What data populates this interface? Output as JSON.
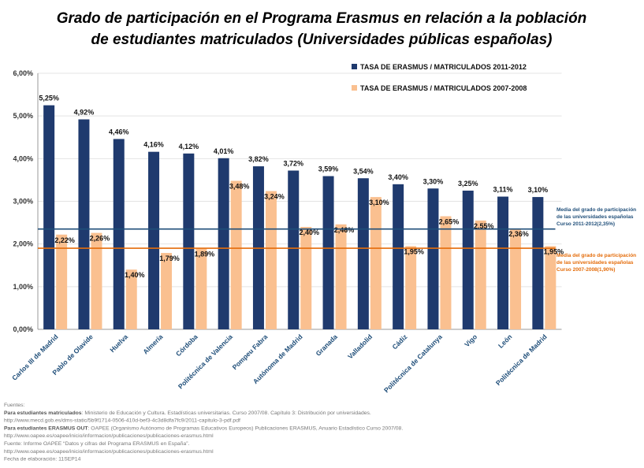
{
  "chart_data": {
    "type": "bar",
    "title": [
      "Grado de participación en el Programa Erasmus en relación a la población",
      "de estudiantes matriculados (Universidades públicas españolas)"
    ],
    "categories": [
      "Carlos III de Madrid",
      "Pablo de Olavide",
      "Huelva",
      "Almería",
      "Córdoba",
      "Politécnica de Valencia",
      "Pompeu Fabra",
      "Autónoma de Madrid",
      "Granada",
      "Valladolid",
      "Cádiz",
      "Politécnica de Catalunya",
      "Vigo",
      "León",
      "Politécnica de Madrid"
    ],
    "series": [
      {
        "name": "TASA DE ERASMUS / MATRICULADOS 2011-2012",
        "color": "#1f3a6e",
        "values": [
          5.25,
          4.92,
          4.46,
          4.16,
          4.12,
          4.01,
          3.82,
          3.72,
          3.59,
          3.54,
          3.4,
          3.3,
          3.25,
          3.11,
          3.1
        ],
        "value_labels": [
          "5,25%",
          "4,92%",
          "4,46%",
          "4,16%",
          "4,12%",
          "4,01%",
          "3,82%",
          "3,72%",
          "3,59%",
          "3,54%",
          "3,40%",
          "3,30%",
          "3,25%",
          "3,11%",
          "3,10%"
        ]
      },
      {
        "name": "TASA DE ERASMUS / MATRICULADOS 2007-2008",
        "color": "#fac090",
        "values": [
          2.22,
          2.26,
          1.4,
          1.79,
          1.89,
          3.48,
          3.24,
          2.4,
          2.46,
          3.1,
          1.95,
          2.65,
          2.55,
          2.36,
          1.95
        ],
        "value_labels": [
          "2,22%",
          "2,26%",
          "1,40%",
          "1,79%",
          "1,89%",
          "3,48%",
          "3,24%",
          "2,40%",
          "2,46%",
          "3,10%",
          "1,95%",
          "2,65%",
          "2,55%",
          "2,36%",
          "1,95%"
        ]
      }
    ],
    "ylim": [
      0,
      6
    ],
    "yticks": [
      {
        "value": 0,
        "label": "0,00%"
      },
      {
        "value": 1,
        "label": "1,00%"
      },
      {
        "value": 2,
        "label": "2,00%"
      },
      {
        "value": 3,
        "label": "3,00%"
      },
      {
        "value": 4,
        "label": "4,00%"
      },
      {
        "value": 5,
        "label": "5,00%"
      },
      {
        "value": 6,
        "label": "6,00%"
      }
    ],
    "grid": true,
    "legend": "top-right",
    "reference_lines": [
      {
        "value": 2.35,
        "color": "#1f4e79",
        "label": [
          "Media del grado de participación",
          "de las universidades españolas",
          "Curso 2011-2012(2,35%)"
        ]
      },
      {
        "value": 1.9,
        "color": "#e46c0a",
        "label": [
          "Media del grado de participación",
          "de las universidades españolas",
          "Curso 2007-2008(1,90%)"
        ]
      }
    ],
    "sources": [
      {
        "text": "Fuentes:"
      },
      {
        "bold": "Para estudiantes matriculados",
        "text": ": Ministerio de Educación y Cultura. Estadísticas universitarias. Curso 2007/08. Capítulo 3: Distribución por universidades."
      },
      {
        "text": "http://www.mecd.gob.es/dms-static/5b9f1714-0506-410d-bef3-4c3d8dfa7fc9/2011-capitulo-3-pdf.pdf"
      },
      {
        "bold": "Para estudiantes ERASMUS OUT",
        "text": ": OAPEE (Organismo Autónomo de Programas Educativos Europeos) Publicaciones ERASMUS, Anuario Estadístico Curso 2007/08."
      },
      {
        "text": "http://www.oapee.es/oapee/inicio/informacion/publicaciones/publicaciones-erasmus.html"
      },
      {
        "text": "Fuente: Informe OAPEE “Datos y cifras del Programa ERASMUS en España”."
      },
      {
        "text": "http://www.oapee.es/oapee/inicio/informacion/publicaciones/publicaciones-erasmus.html"
      },
      {
        "text": "Fecha de elaboración: 11SEP14"
      }
    ]
  }
}
